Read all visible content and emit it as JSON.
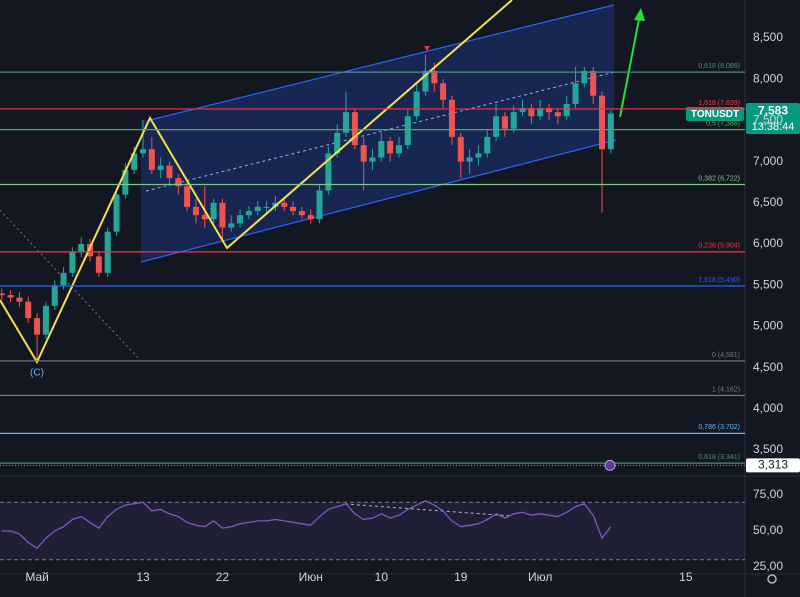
{
  "chart_data": {
    "type": "candlestick",
    "symbol": "TONUSDT",
    "countdown": "13:38:44",
    "wave_label": "(C)",
    "up_color": "#26a69a",
    "down_color": "#ef5350",
    "candles": [
      [
        5400,
        5460,
        5320,
        5380
      ],
      [
        5380,
        5440,
        5290,
        5350
      ],
      [
        5350,
        5420,
        5240,
        5300
      ],
      [
        5300,
        5360,
        5040,
        5100
      ],
      [
        5100,
        5160,
        4581,
        4900
      ],
      [
        4900,
        5300,
        4850,
        5250
      ],
      [
        5250,
        5560,
        5200,
        5500
      ],
      [
        5500,
        5720,
        5450,
        5650
      ],
      [
        5650,
        5960,
        5600,
        5900
      ],
      [
        5900,
        6080,
        5840,
        6000
      ],
      [
        6000,
        6060,
        5790,
        5850
      ],
      [
        5850,
        5900,
        5600,
        5650
      ],
      [
        5650,
        6200,
        5600,
        6150
      ],
      [
        6150,
        6680,
        6100,
        6600
      ],
      [
        6600,
        6980,
        6550,
        6900
      ],
      [
        6900,
        7180,
        6850,
        7100
      ],
      [
        7100,
        7500,
        7050,
        7150
      ],
      [
        7150,
        7300,
        6850,
        6900
      ],
      [
        6900,
        7050,
        6800,
        6950
      ],
      [
        6950,
        7000,
        6700,
        6800
      ],
      [
        6800,
        6850,
        6600,
        6700
      ],
      [
        6700,
        6750,
        6400,
        6450
      ],
      [
        6450,
        6550,
        6250,
        6350
      ],
      [
        6350,
        6700,
        6200,
        6300
      ],
      [
        6300,
        6550,
        6250,
        6500
      ],
      [
        6500,
        6550,
        6050,
        6200
      ],
      [
        6200,
        6350,
        6150,
        6250
      ],
      [
        6250,
        6420,
        6200,
        6350
      ],
      [
        6350,
        6460,
        6300,
        6400
      ],
      [
        6400,
        6520,
        6350,
        6450
      ],
      [
        6450,
        6520,
        6380,
        6450
      ],
      [
        6450,
        6580,
        6400,
        6500
      ],
      [
        6500,
        6560,
        6400,
        6450
      ],
      [
        6450,
        6520,
        6350,
        6400
      ],
      [
        6400,
        6450,
        6300,
        6350
      ],
      [
        6350,
        6420,
        6250,
        6300
      ],
      [
        6300,
        6720,
        6250,
        6650
      ],
      [
        6650,
        7180,
        6600,
        7100
      ],
      [
        7100,
        7450,
        7050,
        7350
      ],
      [
        7350,
        7850,
        7300,
        7600
      ],
      [
        7600,
        7650,
        7150,
        7200
      ],
      [
        7200,
        7300,
        6650,
        7000
      ],
      [
        7000,
        7150,
        6900,
        7050
      ],
      [
        7050,
        7350,
        7000,
        7250
      ],
      [
        7250,
        7300,
        7000,
        7100
      ],
      [
        7100,
        7300,
        7050,
        7200
      ],
      [
        7200,
        7650,
        7150,
        7550
      ],
      [
        7550,
        7950,
        7500,
        7850
      ],
      [
        7850,
        8300,
        7800,
        8100
      ],
      [
        8100,
        8200,
        7850,
        7950
      ],
      [
        7950,
        8000,
        7650,
        7750
      ],
      [
        7750,
        7800,
        7200,
        7300
      ],
      [
        7300,
        7350,
        6800,
        7000
      ],
      [
        7000,
        7150,
        6850,
        7050
      ],
      [
        7050,
        7200,
        6950,
        7100
      ],
      [
        7100,
        7380,
        7050,
        7300
      ],
      [
        7300,
        7700,
        7250,
        7550
      ],
      [
        7550,
        7600,
        7300,
        7400
      ],
      [
        7400,
        7680,
        7350,
        7600
      ],
      [
        7600,
        7750,
        7550,
        7650
      ],
      [
        7650,
        7700,
        7450,
        7550
      ],
      [
        7550,
        7750,
        7500,
        7650
      ],
      [
        7650,
        7700,
        7500,
        7600
      ],
      [
        7600,
        7650,
        7450,
        7550
      ],
      [
        7550,
        7800,
        7500,
        7700
      ],
      [
        7700,
        8150,
        7650,
        7950
      ],
      [
        7950,
        8150,
        7900,
        8100
      ],
      [
        8100,
        8150,
        7700,
        7800
      ],
      [
        7800,
        7850,
        6380,
        7150
      ],
      [
        7150,
        7620,
        7100,
        7583
      ]
    ],
    "xlim": [
      -0.2,
      84.2
    ],
    "xticks": [
      {
        "value": 4,
        "label": "Май"
      },
      {
        "value": 16,
        "label": "13"
      },
      {
        "value": 25,
        "label": "22"
      },
      {
        "value": 35,
        "label": "Июн"
      },
      {
        "value": 43,
        "label": "10"
      },
      {
        "value": 52,
        "label": "19"
      },
      {
        "value": 61,
        "label": "Июл"
      },
      {
        "value": 77.5,
        "label": "15"
      }
    ],
    "ylim": [
      3233,
      8961
    ],
    "yticks": [
      {
        "value": 8500,
        "label": "8,500"
      },
      {
        "value": 8000,
        "label": "8,000"
      },
      {
        "value": 7500,
        "label": "7,500"
      },
      {
        "value": 7000,
        "label": "7,000"
      },
      {
        "value": 6500,
        "label": "6,500"
      },
      {
        "value": 6000,
        "label": "6,000"
      },
      {
        "value": 5500,
        "label": "5,500"
      },
      {
        "value": 5000,
        "label": "5,000"
      },
      {
        "value": 4500,
        "label": "4,500"
      },
      {
        "value": 4000,
        "label": "4,000"
      },
      {
        "value": 3500,
        "label": "3,500"
      }
    ],
    "price_tag": {
      "value": 7583,
      "label": "7,583"
    },
    "marker_tag": {
      "value": 3313,
      "label": "3,313"
    },
    "fib_levels": [
      {
        "value": 8086,
        "label": "0,618 (8,086)",
        "color": "#4f8a80"
      },
      {
        "value": 7639,
        "label": "1,618 (7,639)",
        "color": "#f23645"
      },
      {
        "value": 7388,
        "label": "0,5 (7,388)",
        "color": "#4caf50"
      },
      {
        "value": 6722,
        "label": "0,382 (6,722)",
        "color": "#81c784"
      },
      {
        "value": 5904,
        "label": "0,236 (5,904)",
        "color": "#f23645"
      },
      {
        "value": 5490,
        "label": "1,618 (5,490)",
        "color": "#2962ff"
      },
      {
        "value": 4581,
        "label": "0 (4,581)",
        "color": "#787b86"
      },
      {
        "value": 4162,
        "label": "1 (4,162)",
        "color": "#787b86"
      },
      {
        "value": 3702,
        "label": "0,786 (3,702)",
        "color": "#64b5f6"
      },
      {
        "value": 3341,
        "label": "0,618 (3,341)",
        "color": "#4f8a80"
      }
    ],
    "rsi": {
      "color": "#7e57c2",
      "band": [
        30,
        70
      ],
      "ylim": [
        22.9,
        79.9
      ],
      "yticks": [
        {
          "value": 75,
          "label": "75,00"
        },
        {
          "value": 50,
          "label": "50,00"
        },
        {
          "value": 25,
          "label": "25,00"
        }
      ],
      "values": [
        50,
        50,
        48,
        42,
        38,
        45,
        50,
        53,
        58,
        60,
        56,
        52,
        60,
        65,
        68,
        69,
        70,
        64,
        65,
        62,
        60,
        56,
        54,
        53,
        57,
        52,
        53,
        55,
        56,
        57,
        57,
        58,
        57,
        56,
        55,
        54,
        60,
        65,
        67,
        69,
        62,
        58,
        59,
        62,
        59,
        61,
        65,
        68,
        71,
        68,
        64,
        57,
        53,
        54,
        55,
        58,
        62,
        59,
        62,
        63,
        61,
        62,
        61,
        60,
        63,
        67,
        69,
        61,
        45,
        53
      ]
    }
  }
}
